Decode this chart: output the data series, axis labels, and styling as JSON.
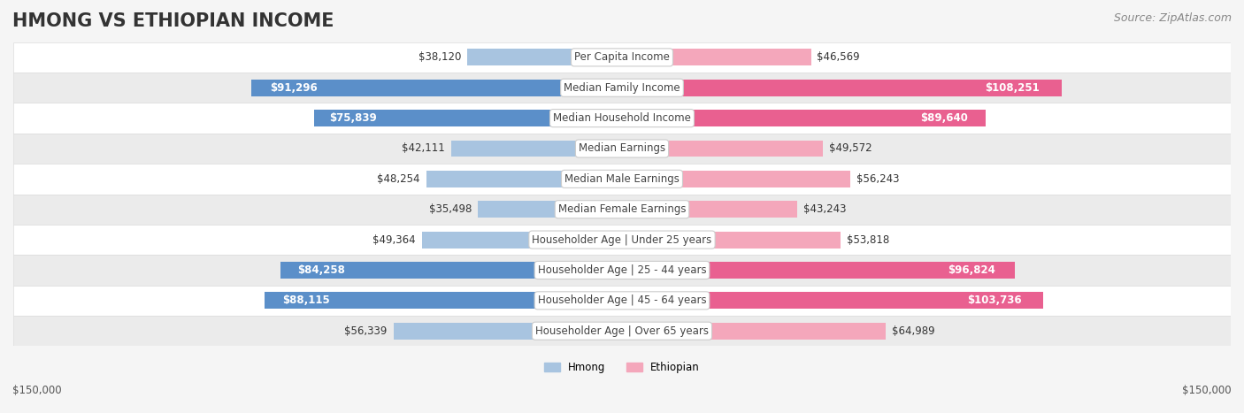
{
  "title": "HMONG VS ETHIOPIAN INCOME",
  "source": "Source: ZipAtlas.com",
  "categories": [
    "Per Capita Income",
    "Median Family Income",
    "Median Household Income",
    "Median Earnings",
    "Median Male Earnings",
    "Median Female Earnings",
    "Householder Age | Under 25 years",
    "Householder Age | 25 - 44 years",
    "Householder Age | 45 - 64 years",
    "Householder Age | Over 65 years"
  ],
  "hmong_values": [
    38120,
    91296,
    75839,
    42111,
    48254,
    35498,
    49364,
    84258,
    88115,
    56339
  ],
  "ethiopian_values": [
    46569,
    108251,
    89640,
    49572,
    56243,
    43243,
    53818,
    96824,
    103736,
    64989
  ],
  "hmong_labels": [
    "$38,120",
    "$91,296",
    "$75,839",
    "$42,111",
    "$48,254",
    "$35,498",
    "$49,364",
    "$84,258",
    "$88,115",
    "$56,339"
  ],
  "ethiopian_labels": [
    "$46,569",
    "$108,251",
    "$89,640",
    "$49,572",
    "$56,243",
    "$43,243",
    "$53,818",
    "$96,824",
    "$103,736",
    "$64,989"
  ],
  "hmong_color_light": "#a8c4e0",
  "hmong_color_dark": "#5b8fc9",
  "ethiopian_color_light": "#f4a7bb",
  "ethiopian_color_dark": "#e96090",
  "max_value": 150000,
  "bar_height": 0.55,
  "background_color": "#f5f5f5",
  "row_bg_color": "#ffffff",
  "row_alt_color": "#f0f0f0",
  "xlabel_left": "$150,000",
  "xlabel_right": "$150,000",
  "legend_hmong": "Hmong",
  "legend_ethiopian": "Ethiopian",
  "title_fontsize": 15,
  "label_fontsize": 8.5,
  "category_fontsize": 8.5,
  "source_fontsize": 9,
  "threshold_dark_hmong": 60000,
  "threshold_dark_ethiopian": 80000
}
